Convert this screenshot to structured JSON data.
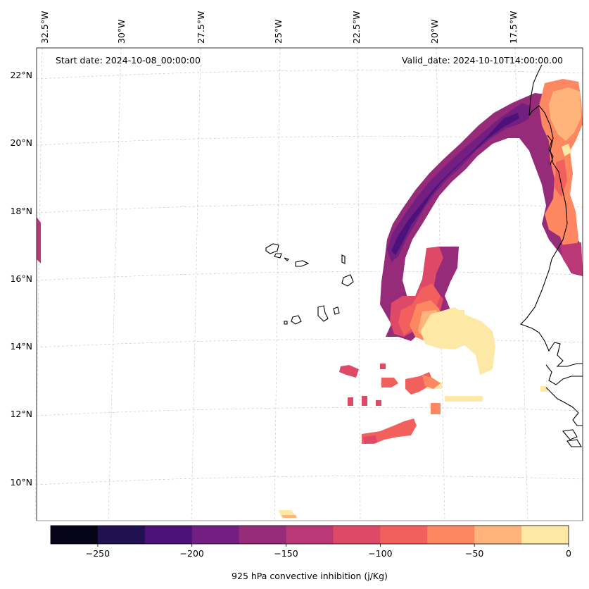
{
  "map": {
    "top_labels": [
      "32.5°W",
      "30°W",
      "27.5°W",
      "25°W",
      "22.5°W",
      "20°W",
      "17.5°W"
    ],
    "left_labels": [
      "22°N",
      "20°N",
      "18°N",
      "16°N",
      "14°N",
      "12°N",
      "10°N"
    ],
    "start_date": "Start date: 2024-10-08_00:00:00",
    "valid_date": "Valid_date: 2024-10-10T14:00:00.00"
  },
  "colorbar": {
    "label": "925 hPa convective inhibition (j/Kg)",
    "tick_labels": [
      "−250",
      "−200",
      "−150",
      "−100",
      "−50",
      "0"
    ],
    "levels": [
      -275,
      -250,
      -225,
      -200,
      -175,
      -150,
      -125,
      -100,
      -75,
      -50,
      -25,
      0
    ],
    "colors": [
      "#050417",
      "#221150",
      "#4d117a",
      "#731f81",
      "#962b7a",
      "#bb3877",
      "#de4968",
      "#f1605d",
      "#fc8761",
      "#feb47b",
      "#fde9a5"
    ]
  }
}
